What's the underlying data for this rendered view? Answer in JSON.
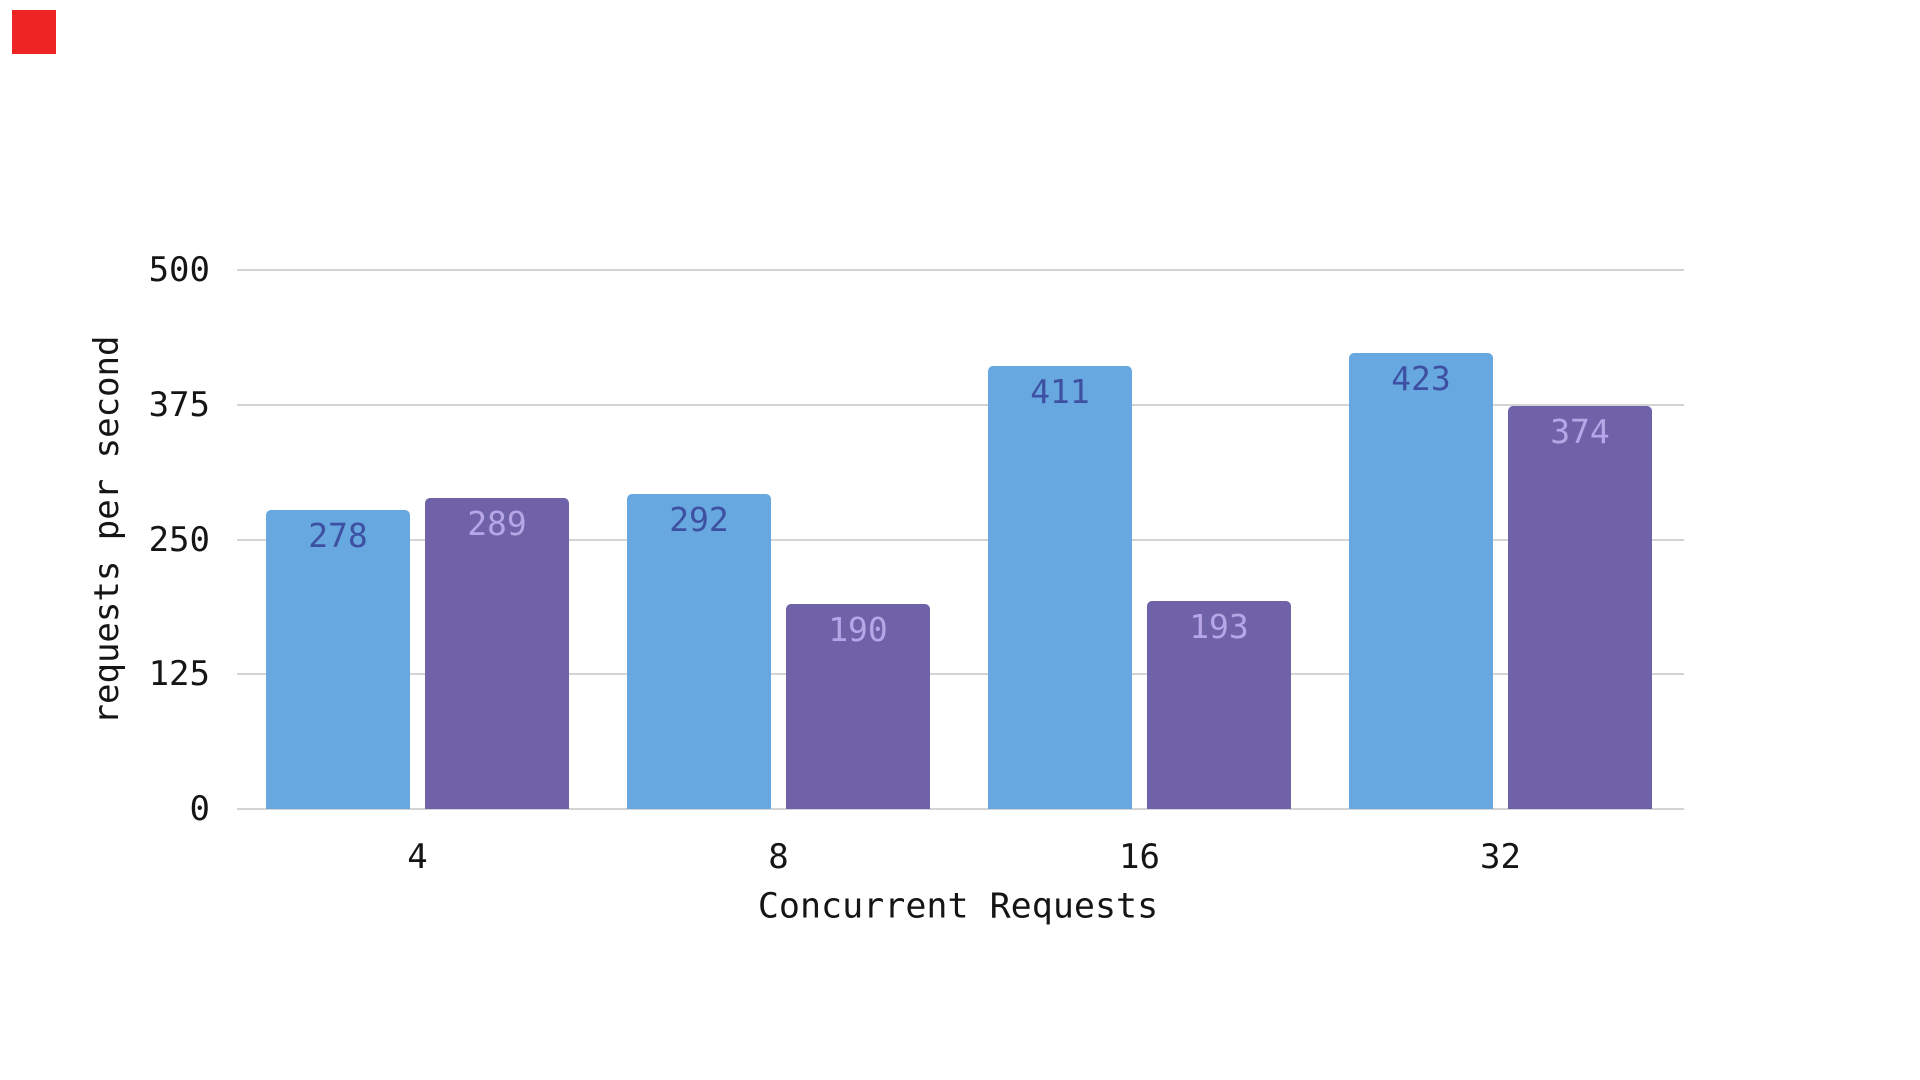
{
  "marker": {
    "name": "red-square",
    "color": "#ee2424"
  },
  "chart_data": {
    "type": "bar",
    "title": "",
    "xlabel": "Concurrent Requests",
    "ylabel": "requests per second",
    "categories": [
      "4",
      "8",
      "16",
      "32"
    ],
    "series": [
      {
        "name": "blue",
        "color": "#67a8e1",
        "value_label_color": "#3e50a2",
        "values": [
          278,
          292,
          411,
          423
        ]
      },
      {
        "name": "purple",
        "color": "#7062a9",
        "value_label_color": "#b7a6e7",
        "values": [
          289,
          190,
          193,
          374
        ]
      }
    ],
    "yticks": [
      0,
      125,
      250,
      375,
      500
    ],
    "ylim": [
      0,
      500
    ],
    "grid": true,
    "legend_position": "none",
    "value_label_position": "inside-top",
    "background": "#ffffff",
    "gridline_color": "#d4d4d4"
  }
}
